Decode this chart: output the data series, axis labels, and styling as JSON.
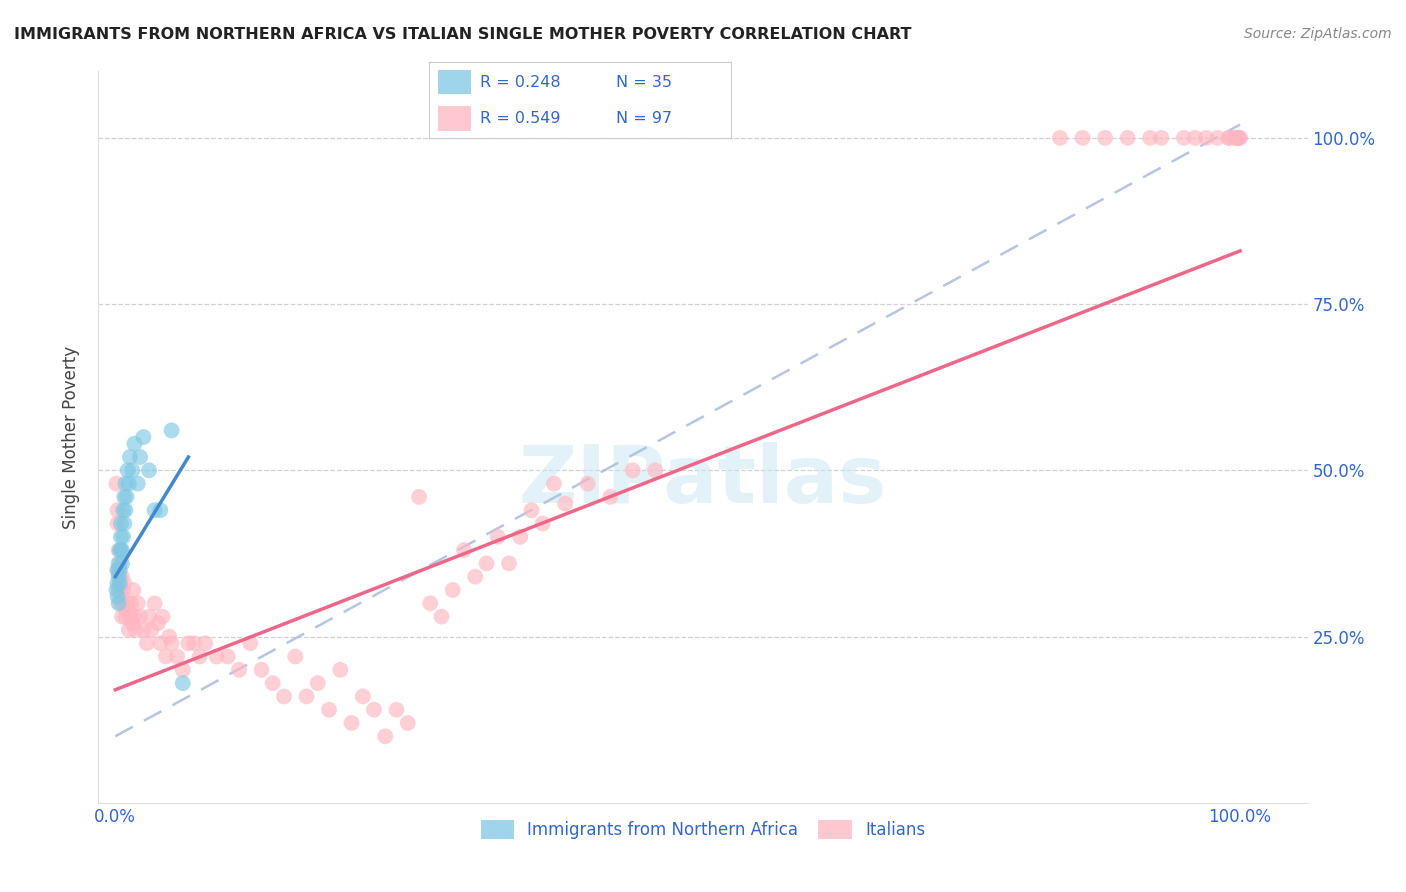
{
  "title": "IMMIGRANTS FROM NORTHERN AFRICA VS ITALIAN SINGLE MOTHER POVERTY CORRELATION CHART",
  "source": "Source: ZipAtlas.com",
  "ylabel": "Single Mother Poverty",
  "color_blue": "#7ec8e3",
  "color_pink": "#ffb6c1",
  "color_blue_line": "#4488cc",
  "color_pink_line": "#ee6688",
  "color_dashed": "#aabbdd",
  "watermark_text": "ZIPatlas",
  "legend1_r": "R = 0.248",
  "legend1_n": "N = 35",
  "legend2_r": "R = 0.549",
  "legend2_n": "N = 97",
  "blue_x": [
    0.001,
    0.002,
    0.002,
    0.002,
    0.003,
    0.003,
    0.003,
    0.004,
    0.004,
    0.004,
    0.005,
    0.005,
    0.005,
    0.006,
    0.006,
    0.007,
    0.007,
    0.008,
    0.008,
    0.009,
    0.009,
    0.01,
    0.011,
    0.012,
    0.013,
    0.015,
    0.017,
    0.02,
    0.022,
    0.025,
    0.03,
    0.035,
    0.04,
    0.05,
    0.06
  ],
  "blue_y": [
    0.32,
    0.31,
    0.33,
    0.35,
    0.3,
    0.34,
    0.36,
    0.38,
    0.35,
    0.33,
    0.4,
    0.38,
    0.42,
    0.36,
    0.38,
    0.4,
    0.44,
    0.42,
    0.46,
    0.44,
    0.48,
    0.46,
    0.5,
    0.48,
    0.52,
    0.5,
    0.54,
    0.48,
    0.52,
    0.55,
    0.5,
    0.44,
    0.44,
    0.56,
    0.18
  ],
  "pink_x": [
    0.001,
    0.002,
    0.002,
    0.002,
    0.003,
    0.003,
    0.004,
    0.004,
    0.005,
    0.005,
    0.006,
    0.006,
    0.007,
    0.007,
    0.008,
    0.009,
    0.01,
    0.011,
    0.012,
    0.013,
    0.014,
    0.015,
    0.016,
    0.017,
    0.018,
    0.02,
    0.022,
    0.025,
    0.028,
    0.03,
    0.032,
    0.035,
    0.038,
    0.04,
    0.042,
    0.045,
    0.048,
    0.05,
    0.055,
    0.06,
    0.065,
    0.07,
    0.075,
    0.08,
    0.09,
    0.1,
    0.11,
    0.12,
    0.13,
    0.14,
    0.15,
    0.16,
    0.17,
    0.18,
    0.19,
    0.2,
    0.21,
    0.22,
    0.23,
    0.24,
    0.25,
    0.26,
    0.27,
    0.28,
    0.29,
    0.3,
    0.31,
    0.32,
    0.33,
    0.34,
    0.35,
    0.36,
    0.37,
    0.38,
    0.39,
    0.4,
    0.42,
    0.44,
    0.46,
    0.48,
    0.84,
    0.86,
    0.88,
    0.9,
    0.92,
    0.93,
    0.95,
    0.96,
    0.97,
    0.98,
    0.99,
    0.99,
    0.995,
    0.997,
    0.998,
    0.999,
    1.0
  ],
  "pink_y": [
    0.48,
    0.42,
    0.35,
    0.44,
    0.32,
    0.38,
    0.34,
    0.36,
    0.3,
    0.32,
    0.34,
    0.28,
    0.3,
    0.32,
    0.33,
    0.28,
    0.29,
    0.3,
    0.26,
    0.28,
    0.3,
    0.27,
    0.32,
    0.28,
    0.26,
    0.3,
    0.28,
    0.26,
    0.24,
    0.28,
    0.26,
    0.3,
    0.27,
    0.24,
    0.28,
    0.22,
    0.25,
    0.24,
    0.22,
    0.2,
    0.24,
    0.24,
    0.22,
    0.24,
    0.22,
    0.22,
    0.2,
    0.24,
    0.2,
    0.18,
    0.16,
    0.22,
    0.16,
    0.18,
    0.14,
    0.2,
    0.12,
    0.16,
    0.14,
    0.1,
    0.14,
    0.12,
    0.46,
    0.3,
    0.28,
    0.32,
    0.38,
    0.34,
    0.36,
    0.4,
    0.36,
    0.4,
    0.44,
    0.42,
    0.48,
    0.45,
    0.48,
    0.46,
    0.5,
    0.5,
    1.0,
    1.0,
    1.0,
    1.0,
    1.0,
    1.0,
    1.0,
    1.0,
    1.0,
    1.0,
    1.0,
    1.0,
    1.0,
    1.0,
    1.0,
    1.0,
    1.0
  ],
  "xlim": [
    -0.015,
    1.06
  ],
  "ylim": [
    0.0,
    1.1
  ],
  "pink_line_x": [
    0.0,
    1.0
  ],
  "pink_line_y": [
    0.17,
    0.83
  ],
  "blue_line_x": [
    0.0,
    0.065
  ],
  "blue_line_y": [
    0.34,
    0.52
  ],
  "dash_line_x": [
    0.0,
    1.0
  ],
  "dash_line_y": [
    0.1,
    1.02
  ]
}
